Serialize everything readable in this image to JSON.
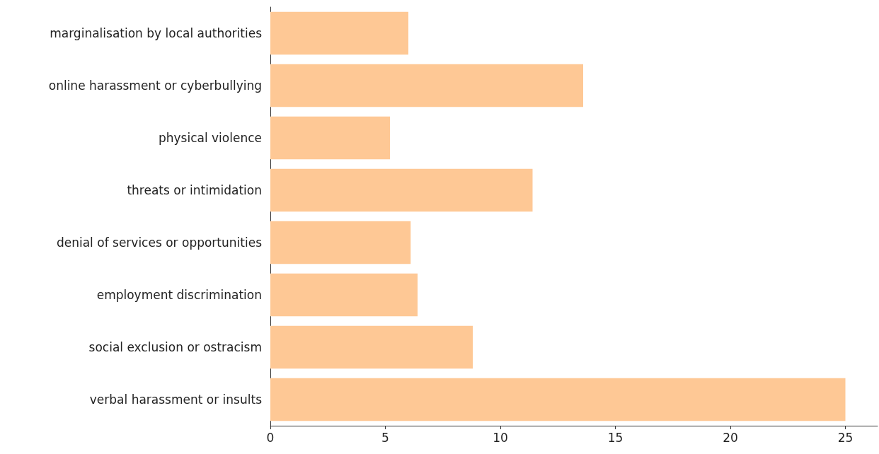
{
  "chart_data": {
    "type": "bar",
    "orientation": "horizontal",
    "categories": [
      "marginalisation by local authorities",
      "online harassment or cyberbullying",
      "physical violence",
      "threats or intimidation",
      "denial of services or opportunities",
      "employment discrimination",
      "social exclusion or ostracism",
      "verbal harassment or insults"
    ],
    "values": [
      6.0,
      13.6,
      5.2,
      11.4,
      6.1,
      6.4,
      8.8,
      25.0
    ],
    "color": "#fec895",
    "xlim": [
      0,
      26.4
    ],
    "xticks": [
      0,
      5,
      10,
      15,
      20,
      25
    ]
  }
}
